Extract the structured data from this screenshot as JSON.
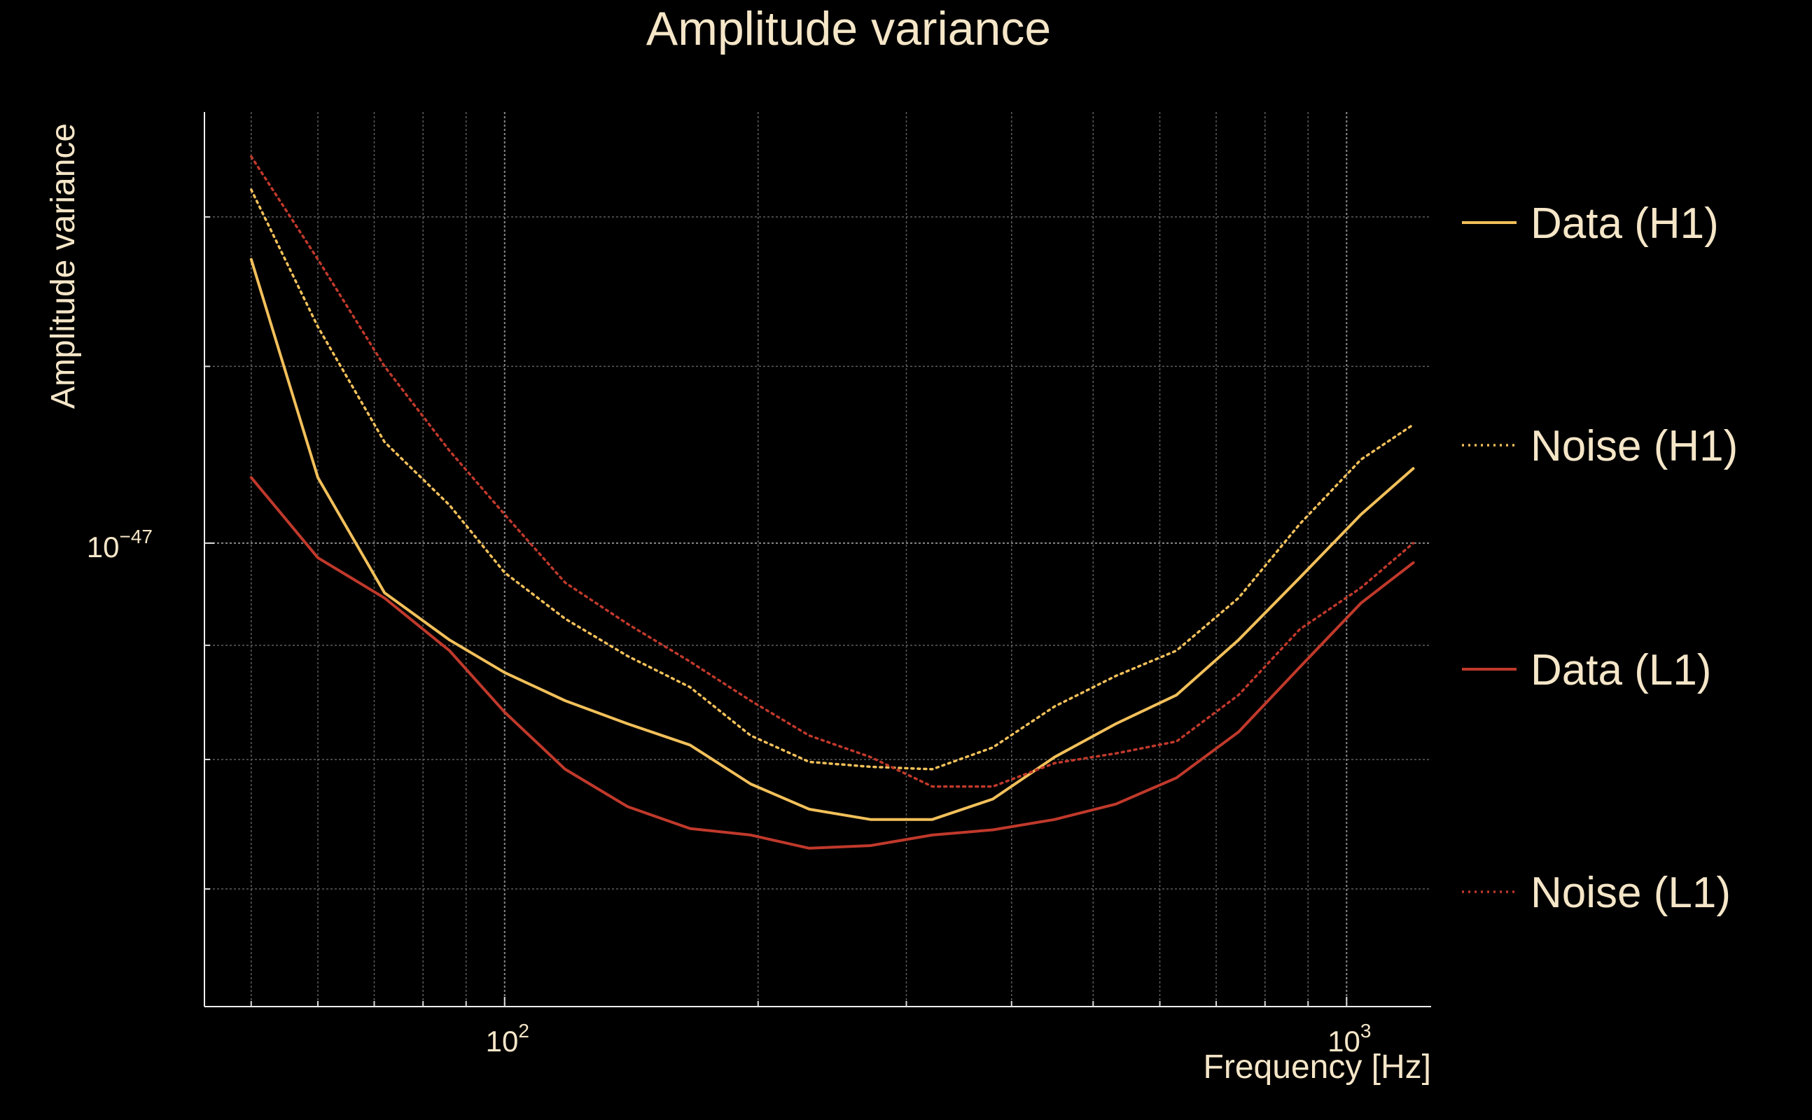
{
  "chart_data": {
    "type": "line",
    "title": "Amplitude variance",
    "xlabel": "Frequency [Hz]",
    "ylabel": "Amplitude variance",
    "x_scale": "log",
    "y_scale": "log",
    "xlim": [
      44,
      1260
    ],
    "ylim": [
      6.2e-48,
      1.56e-47
    ],
    "x_tick_labels": [
      {
        "base": "10",
        "exp": "2"
      },
      {
        "base": "10",
        "exp": "3"
      }
    ],
    "y_tick_labels": [
      {
        "base": "10",
        "exp": "−47"
      }
    ],
    "grid": true,
    "legend_position": "right",
    "x": [
      50,
      60,
      72,
      86,
      100,
      118,
      140,
      166,
      196,
      230,
      272,
      322,
      380,
      450,
      532,
      628,
      744,
      880,
      1040,
      1200
    ],
    "series": [
      {
        "name": "Data (H1)",
        "color": "#f2c05a",
        "style": "solid",
        "values": [
          1.34e-47,
          1.07e-47,
          9.5e-48,
          9.05e-48,
          8.75e-48,
          8.5e-48,
          8.3e-48,
          8.12e-48,
          7.8e-48,
          7.6e-48,
          7.52e-48,
          7.52e-48,
          7.68e-48,
          8.02e-48,
          8.3e-48,
          8.55e-48,
          9.05e-48,
          9.65e-48,
          1.03e-47,
          1.08e-47
        ]
      },
      {
        "name": "Noise (H1)",
        "color": "#f2c05a",
        "style": "dotted",
        "values": [
          1.44e-47,
          1.25e-47,
          1.11e-47,
          1.04e-47,
          9.7e-48,
          9.25e-48,
          8.9e-48,
          8.62e-48,
          8.2e-48,
          7.98e-48,
          7.94e-48,
          7.92e-48,
          8.1e-48,
          8.45e-48,
          8.72e-48,
          8.95e-48,
          9.45e-48,
          1.02e-47,
          1.09e-47,
          1.13e-47
        ]
      },
      {
        "name": "Data (L1)",
        "color": "#c0392b",
        "style": "solid",
        "values": [
          1.07e-47,
          9.85e-48,
          9.45e-48,
          8.95e-48,
          8.4e-48,
          7.92e-48,
          7.62e-48,
          7.45e-48,
          7.4e-48,
          7.3e-48,
          7.32e-48,
          7.4e-48,
          7.44e-48,
          7.52e-48,
          7.64e-48,
          7.85e-48,
          8.23e-48,
          8.8e-48,
          9.4e-48,
          9.8e-48
        ]
      },
      {
        "name": "Noise (L1)",
        "color": "#c0392b",
        "style": "dotted",
        "values": [
          1.49e-47,
          1.34e-47,
          1.2e-47,
          1.1e-47,
          1.03e-47,
          9.6e-48,
          9.2e-48,
          8.85e-48,
          8.5e-48,
          8.2e-48,
          8.02e-48,
          7.78e-48,
          7.78e-48,
          7.97e-48,
          8.05e-48,
          8.15e-48,
          8.55e-48,
          9.15e-48,
          9.55e-48,
          1e-47
        ]
      }
    ]
  }
}
